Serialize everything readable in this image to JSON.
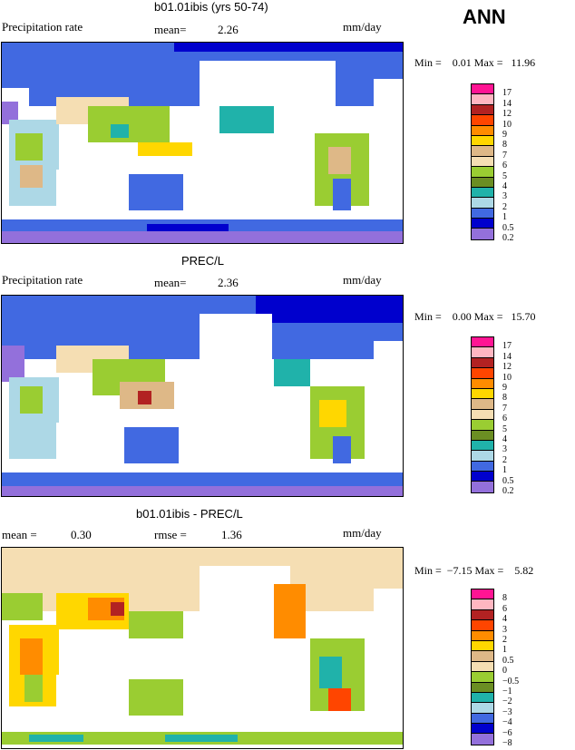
{
  "season": "ANN",
  "panels": [
    {
      "title": "b01.01ibis (yrs 50-74)",
      "left_label": "Precipitation rate",
      "mean_label": "mean=",
      "mean_value": "2.26",
      "units": "mm/day",
      "minmax": "Min =    0.01 Max =   11.96",
      "levels": [
        "17",
        "14",
        "12",
        "10",
        "9",
        "8",
        "7",
        "6",
        "5",
        "4",
        "3",
        "2",
        "1",
        "0.5",
        "0.2"
      ]
    },
    {
      "title": "PREC/L",
      "left_label": "Precipitation rate",
      "mean_label": "mean=",
      "mean_value": "2.36",
      "units": "mm/day",
      "minmax": "Min =    0.00 Max =   15.70",
      "levels": [
        "17",
        "14",
        "12",
        "10",
        "9",
        "8",
        "7",
        "6",
        "5",
        "4",
        "3",
        "2",
        "1",
        "0.5",
        "0.2"
      ]
    },
    {
      "title": "b01.01ibis - PREC/L",
      "left_label": "mean =",
      "left_value": "0.30",
      "rmse_label": "rmse =",
      "rmse_value": "1.36",
      "units": "mm/day",
      "minmax": "Min =  −7.15 Max =    5.82",
      "levels": [
        "8",
        "6",
        "4",
        "3",
        "2",
        "1",
        "0.5",
        "0",
        "−0.5",
        "−1",
        "−2",
        "−3",
        "−4",
        "−6",
        "−8"
      ]
    }
  ],
  "palette": [
    "#ff1493",
    "#ffb6c1",
    "#b22222",
    "#ff4500",
    "#ff8c00",
    "#ffd700",
    "#deb887",
    "#f5deb3",
    "#9acd32",
    "#6b8e23",
    "#20b2aa",
    "#add8e6",
    "#4169e1",
    "#0000cd",
    "#9370db"
  ],
  "colors": {
    "ocean": "#ffffff",
    "coast": "#000000",
    "wet": "#4169e1",
    "dry": "#f5deb3",
    "polar": "#9370db"
  }
}
